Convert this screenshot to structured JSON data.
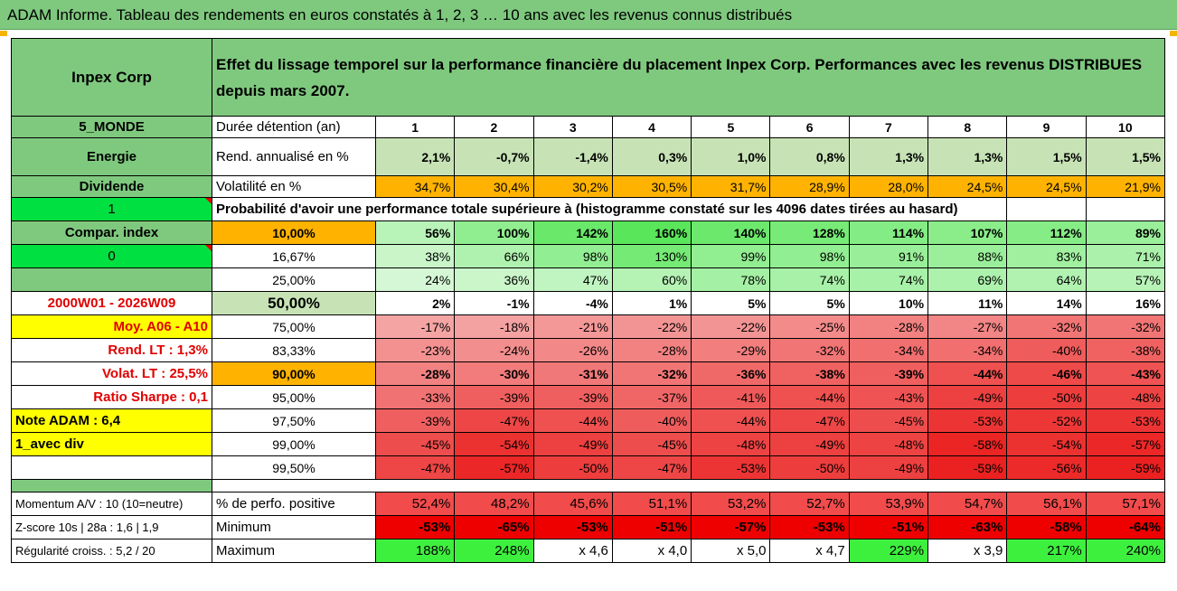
{
  "title": "ADAM Informe. Tableau des rendements en euros constatés à 1, 2, 3 … 10 ans avec les revenus connus distribués",
  "fund": "Inpex Corp",
  "description": "Effet du lissage temporel sur la performance financière du placement Inpex Corp. Performances avec les revenus DISTRIBUES depuis mars 2007.",
  "rows": [
    {
      "left": "5_MONDE",
      "label": "Durée détention (an)",
      "values": [
        "1",
        "2",
        "3",
        "4",
        "5",
        "6",
        "7",
        "8",
        "9",
        "10"
      ]
    },
    {
      "left": "Energie",
      "label": "Rend. annualisé en %",
      "values": [
        "2,1%",
        "-0,7%",
        "-1,4%",
        "0,3%",
        "1,0%",
        "0,8%",
        "1,3%",
        "1,3%",
        "1,5%",
        "1,5%"
      ]
    },
    {
      "left": "Dividende",
      "label": "Volatilité en %",
      "values": [
        "34,7%",
        "30,4%",
        "30,2%",
        "30,5%",
        "31,7%",
        "28,9%",
        "28,0%",
        "24,5%",
        "24,5%",
        "21,9%"
      ]
    },
    {
      "left": "1",
      "label": "Probabilité d'avoir une performance totale supérieure à (histogramme constaté sur les 4096 dates tirées au hasard)",
      "values": []
    },
    {
      "left": "Compar. index",
      "label": "10,00%",
      "values": [
        "56%",
        "100%",
        "142%",
        "160%",
        "140%",
        "128%",
        "114%",
        "107%",
        "112%",
        "89%"
      ]
    },
    {
      "left": "0",
      "label": "16,67%",
      "values": [
        "38%",
        "66%",
        "98%",
        "130%",
        "99%",
        "98%",
        "91%",
        "88%",
        "83%",
        "71%"
      ]
    },
    {
      "left": "",
      "label": "25,00%",
      "values": [
        "24%",
        "36%",
        "47%",
        "60%",
        "78%",
        "74%",
        "74%",
        "69%",
        "64%",
        "57%"
      ]
    },
    {
      "left": "2000W01 - 2026W09",
      "label": "50,00%",
      "values": [
        "2%",
        "-1%",
        "-4%",
        "1%",
        "5%",
        "5%",
        "10%",
        "11%",
        "14%",
        "16%"
      ]
    },
    {
      "left": "Moy. A06 - A10",
      "label": "75,00%",
      "values": [
        "-17%",
        "-18%",
        "-21%",
        "-22%",
        "-22%",
        "-25%",
        "-28%",
        "-27%",
        "-32%",
        "-32%"
      ]
    },
    {
      "left": "Rend. LT :    1,3%",
      "label": "83,33%",
      "values": [
        "-23%",
        "-24%",
        "-26%",
        "-28%",
        "-29%",
        "-32%",
        "-34%",
        "-34%",
        "-40%",
        "-38%"
      ]
    },
    {
      "left": "Volat. LT :    25,5%",
      "label": "90,00%",
      "values": [
        "-28%",
        "-30%",
        "-31%",
        "-32%",
        "-36%",
        "-38%",
        "-39%",
        "-44%",
        "-46%",
        "-43%"
      ]
    },
    {
      "left": "Ratio Sharpe :    0,1",
      "label": "95,00%",
      "values": [
        "-33%",
        "-39%",
        "-39%",
        "-37%",
        "-41%",
        "-44%",
        "-43%",
        "-49%",
        "-50%",
        "-48%"
      ]
    },
    {
      "left": "Note ADAM : 6,4",
      "label": "97,50%",
      "values": [
        "-39%",
        "-47%",
        "-44%",
        "-40%",
        "-44%",
        "-47%",
        "-45%",
        "-53%",
        "-52%",
        "-53%"
      ]
    },
    {
      "left": "1_avec div",
      "label": "99,00%",
      "values": [
        "-45%",
        "-54%",
        "-49%",
        "-45%",
        "-48%",
        "-49%",
        "-48%",
        "-58%",
        "-54%",
        "-57%"
      ]
    },
    {
      "left": "",
      "label": "99,50%",
      "values": [
        "-47%",
        "-57%",
        "-50%",
        "-47%",
        "-53%",
        "-50%",
        "-49%",
        "-59%",
        "-56%",
        "-59%"
      ]
    },
    {
      "left": "Momentum A/V : 10 (10=neutre)",
      "label": "% de perfo. positive",
      "values": [
        "52,4%",
        "48,2%",
        "45,6%",
        "51,1%",
        "53,2%",
        "52,7%",
        "53,9%",
        "54,7%",
        "56,1%",
        "57,1%"
      ]
    },
    {
      "left": "Z-score 10s | 28a : 1,6 | 1,9",
      "label": "Minimum",
      "values": [
        "-53%",
        "-65%",
        "-53%",
        "-51%",
        "-57%",
        "-53%",
        "-51%",
        "-63%",
        "-58%",
        "-64%"
      ]
    },
    {
      "left": "Régularité croiss. : 5,2 / 20",
      "label": "Maximum",
      "values": [
        "188%",
        "248%",
        "x 4,6",
        "x 4,0",
        "x 5,0",
        "x 4,7",
        "229%",
        "x 3,9",
        "217%",
        "240%"
      ]
    }
  ],
  "colors": {
    "header_green": "#7fc97f",
    "light_green": "#c7e3b6",
    "orange": "#ffb300",
    "lime": "#00e040",
    "yellow": "#ffff00",
    "red_text": "#e00000"
  }
}
